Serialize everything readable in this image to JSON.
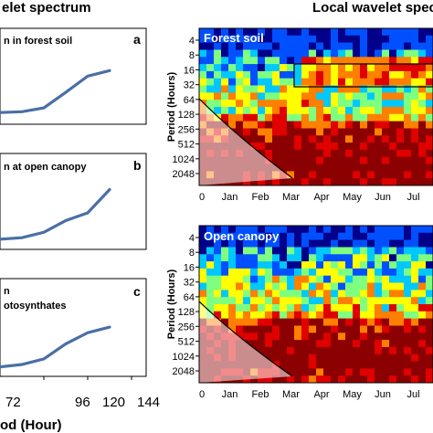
{
  "headings": {
    "global": "elet spectrum",
    "local": "Local wavelet spectr"
  },
  "chart_data": [
    {
      "type": "line",
      "panel_letter": "a",
      "title": "n in forest soil",
      "color": "#4a6fa5",
      "points": [
        [
          48,
          0.08
        ],
        [
          64,
          0.09
        ],
        [
          80,
          0.14
        ],
        [
          96,
          0.34
        ],
        [
          112,
          0.55
        ],
        [
          128,
          0.62
        ]
      ]
    },
    {
      "type": "line",
      "panel_letter": "b",
      "title": "n at open canopy",
      "color": "#4a6fa5",
      "points": [
        [
          48,
          0.06
        ],
        [
          64,
          0.08
        ],
        [
          80,
          0.15
        ],
        [
          96,
          0.3
        ],
        [
          112,
          0.4
        ],
        [
          128,
          0.7
        ]
      ]
    },
    {
      "type": "line",
      "panel_letter": "c",
      "title": "n",
      "subtitle": "otosynthates",
      "color": "#4a6fa5",
      "points": [
        [
          48,
          0.05
        ],
        [
          64,
          0.08
        ],
        [
          80,
          0.15
        ],
        [
          96,
          0.34
        ],
        [
          112,
          0.48
        ],
        [
          128,
          0.55
        ]
      ]
    },
    {
      "type": "heatmap",
      "title": "Forest soil",
      "ylabel": "Period (Hours)",
      "yticks": [
        "4",
        "8",
        "16",
        "32",
        "64",
        "128",
        "256",
        "512",
        "1024",
        "2048"
      ],
      "xticks": [
        "0",
        "Jan",
        "Feb",
        "Mar",
        "Apr",
        "May",
        "Jun",
        "Jul"
      ],
      "colormap": [
        "#00008b",
        "#0050ff",
        "#00c8ff",
        "#7fff7f",
        "#ffff00",
        "#ff7f00",
        "#e00000",
        "#8b0000"
      ]
    },
    {
      "type": "heatmap",
      "title": "Open canopy",
      "ylabel": "Period (Hours)",
      "yticks": [
        "4",
        "8",
        "16",
        "32",
        "64",
        "128",
        "256",
        "512",
        "1024",
        "2048"
      ],
      "xticks": [
        "0",
        "Jan",
        "Feb",
        "Mar",
        "Apr",
        "May",
        "Jun",
        "Jul"
      ],
      "colormap": [
        "#00008b",
        "#0050ff",
        "#00c8ff",
        "#7fff7f",
        "#ffff00",
        "#ff7f00",
        "#e00000",
        "#8b0000"
      ]
    }
  ],
  "global_axis": {
    "xticks": [
      "72",
      "96",
      "120",
      "144"
    ],
    "xlabel": "od (Hour)"
  }
}
